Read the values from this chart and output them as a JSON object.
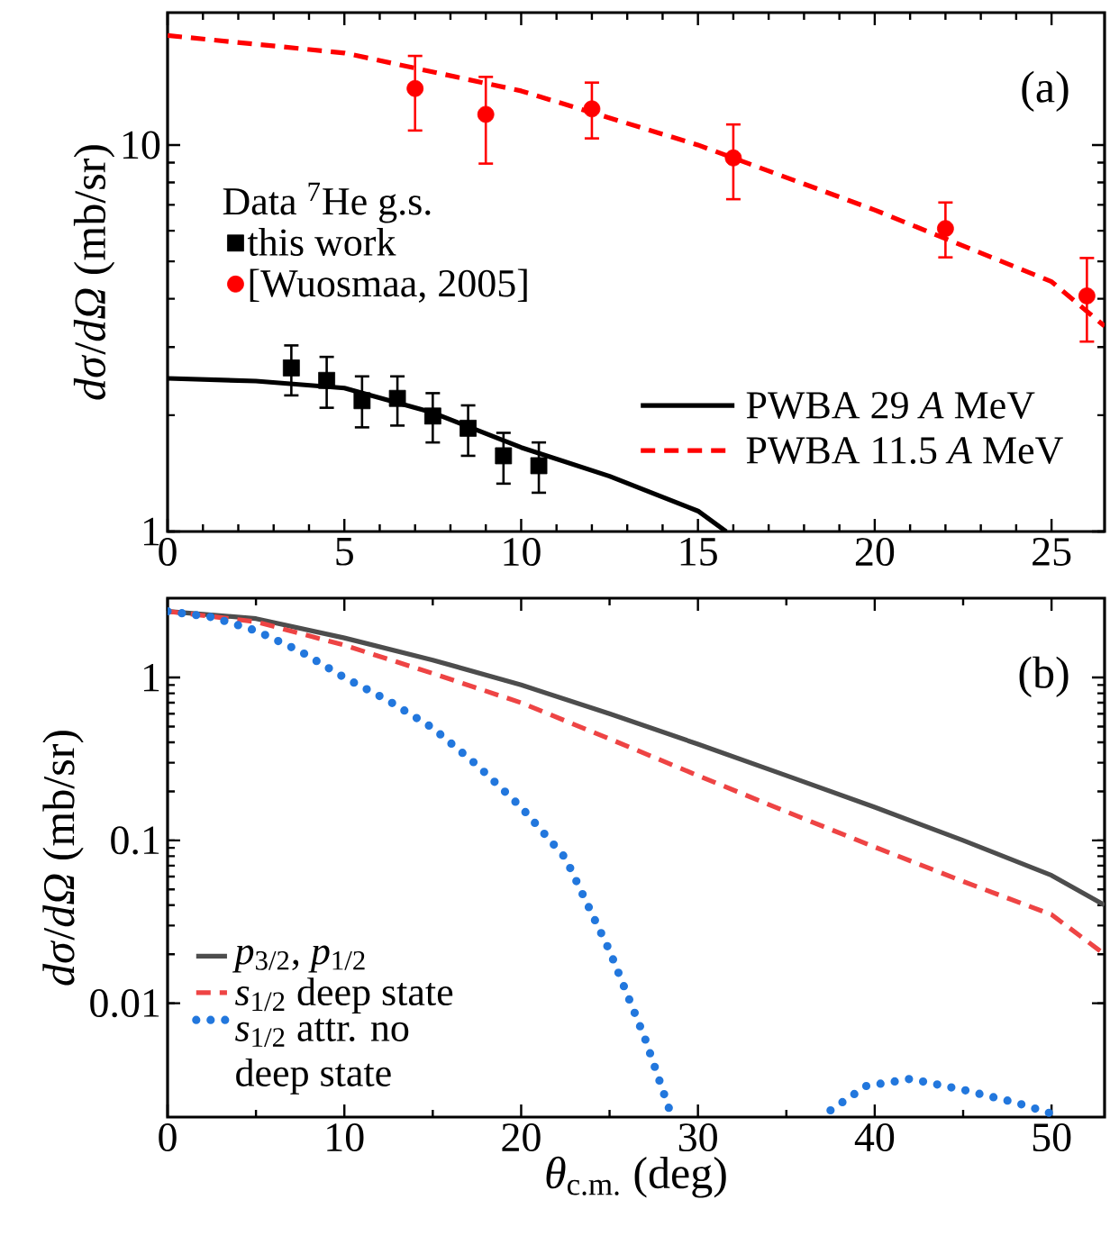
{
  "chart_data": [
    {
      "type": "line",
      "ylabel": "*dσ*/*dΩ*  (mb/sr)",
      "log": "y",
      "legend": "left",
      "legend_title": "Data $^{7}$He g.s.",
      "xlim": [
        0,
        26.5
      ],
      "ylim": [
        1,
        22
      ],
      "xticks": [
        0,
        5,
        10,
        15,
        20,
        25
      ],
      "yticks": [
        1,
        10
      ],
      "annotations": [
        "(a)"
      ],
      "series": [
        {
          "name": "this work",
          "type": "scatter",
          "marker": "square",
          "color": "#000000",
          "x": [
            3.5,
            4.5,
            5.5,
            6.5,
            7.5,
            8.5,
            9.5,
            10.5
          ],
          "values": [
            2.65,
            2.46,
            2.18,
            2.21,
            1.99,
            1.85,
            1.57,
            1.48
          ],
          "errors": [
            [
              2.25,
              3.03
            ],
            [
              2.09,
              2.83
            ],
            [
              1.86,
              2.52
            ],
            [
              1.88,
              2.52
            ],
            [
              1.7,
              2.28
            ],
            [
              1.57,
              2.12
            ],
            [
              1.33,
              1.8
            ],
            [
              1.26,
              1.7
            ]
          ]
        },
        {
          "name": "[Wuosmaa, 2005]",
          "type": "scatter",
          "marker": "circle",
          "color": "#ff0000",
          "x": [
            7,
            9,
            12,
            16,
            22,
            26
          ],
          "values": [
            14.0,
            12.0,
            12.4,
            9.26,
            6.08,
            4.07
          ],
          "errors": [
            [
              10.9,
              17.0
            ],
            [
              8.95,
              15.0
            ],
            [
              10.4,
              14.5
            ],
            [
              7.24,
              11.3
            ],
            [
              5.12,
              7.1
            ],
            [
              3.1,
              5.1
            ]
          ]
        },
        {
          "name": "PWBA 29 *A* MeV",
          "type": "line",
          "line_style": "solid",
          "color": "#000000",
          "x": [
            0,
            2.5,
            5,
            7.5,
            10,
            12.5,
            15,
            15.8
          ],
          "values": [
            2.49,
            2.45,
            2.35,
            2.03,
            1.65,
            1.39,
            1.13,
            1.0
          ]
        },
        {
          "name": "PWBA 11.5 *A* MeV",
          "type": "line",
          "line_style": "dashed",
          "color": "#ff0000",
          "x": [
            0,
            5,
            10,
            15,
            20,
            25,
            26.5
          ],
          "values": [
            19.2,
            17.3,
            13.8,
            10.0,
            6.79,
            4.43,
            3.4
          ]
        }
      ]
    },
    {
      "type": "line",
      "ylabel": "*dσ*/*dΩ*  (mb/sr)",
      "xlabel": "*θ*$_{c.m.}$  (deg)",
      "log": "y",
      "legend": "bottom left",
      "xlim": [
        0,
        53
      ],
      "ylim": [
        0.002,
        3.07
      ],
      "xticks": [
        0,
        10,
        20,
        30,
        40,
        50
      ],
      "yticks": [
        0.01,
        0.1,
        1
      ],
      "annotations": [
        "(b)"
      ],
      "series": [
        {
          "name": "*p*$_{3/2}$,  *p*$_{1/2}$",
          "line_style": "solid",
          "color": "#4d4d4d",
          "x": [
            0,
            5,
            10,
            15,
            20,
            25,
            30,
            35,
            40,
            45,
            50,
            53
          ],
          "values": [
            2.55,
            2.3,
            1.75,
            1.28,
            0.9,
            0.6,
            0.39,
            0.25,
            0.16,
            0.1,
            0.061,
            0.04
          ]
        },
        {
          "name": "*s*$_{1/2}$ deep state",
          "line_style": "dashed",
          "color": "#ee4444",
          "x": [
            0,
            5,
            10,
            15,
            20,
            25,
            30,
            35,
            40,
            45,
            50,
            53
          ],
          "values": [
            2.55,
            2.2,
            1.58,
            1.06,
            0.7,
            0.42,
            0.25,
            0.15,
            0.091,
            0.056,
            0.035,
            0.02
          ]
        },
        {
          "name": "*s*$_{1/2}$ attr. no deep state",
          "line_style": "dotted",
          "color": "#2277dd",
          "x": [
            0,
            2.5,
            5,
            7.5,
            10,
            12.5,
            15,
            17.5,
            20,
            22.5,
            25,
            27,
            28.4,
            33,
            37.5,
            39.5,
            42,
            45,
            48,
            50
          ],
          "values": [
            2.55,
            2.35,
            1.94,
            1.45,
            1.0,
            0.72,
            0.49,
            0.29,
            0.16,
            0.078,
            0.021,
            0.0061,
            0.0022,
            null,
            0.0022,
            0.0031,
            0.00343,
            0.00294,
            0.00245,
            0.0021
          ]
        }
      ]
    }
  ]
}
